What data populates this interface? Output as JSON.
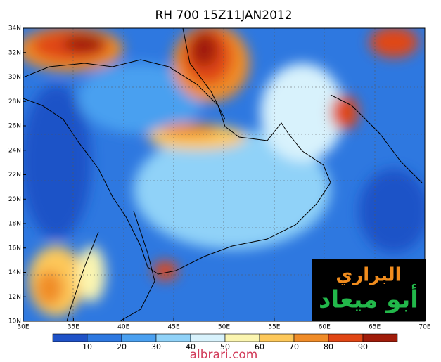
{
  "title": "RH 700 15Z11JAN2012",
  "map": {
    "lat_labels": [
      "10N",
      "12N",
      "14N",
      "16N",
      "18N",
      "20N",
      "22N",
      "24N",
      "26N",
      "28N",
      "30N",
      "32N",
      "34N"
    ],
    "lon_labels": [
      "30E",
      "35E",
      "40E",
      "45E",
      "50E",
      "55E",
      "60E",
      "65E",
      "70E"
    ]
  },
  "colorbar": {
    "labels": [
      10,
      20,
      30,
      40,
      50,
      60,
      70,
      80,
      90
    ],
    "colors": [
      "#1f52c7",
      "#2e78e0",
      "#4aa0f0",
      "#90d2f8",
      "#d8f2fc",
      "#fbf5b0",
      "#fdc85a",
      "#f08c28",
      "#e04614",
      "#a01c0a"
    ]
  },
  "watermark": {
    "line1": "البراري",
    "line2": "أبو ميعاد"
  },
  "footer": "albrari.com"
}
